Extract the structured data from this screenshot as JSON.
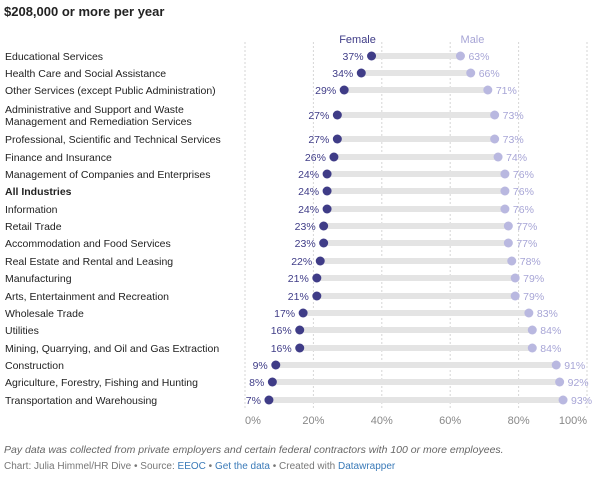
{
  "title": "$208,000 or more per year",
  "colors": {
    "female": "#3f3c87",
    "male": "#b9b8e0",
    "track": "#e4e4e4",
    "female_label": "#3f3c87",
    "male_label": "#a7a5d6"
  },
  "chart_data": {
    "type": "dot",
    "title": "$208,000 or more per year",
    "legend": [
      "Female",
      "Male"
    ],
    "xlim": [
      0,
      100
    ],
    "xticks": [
      "0%",
      "20%",
      "40%",
      "60%",
      "80%",
      "100%"
    ],
    "categories": [
      "Educational Services",
      "Health Care and Social Assistance",
      "Other Services (except Public Administration)",
      "Administrative and Support and Waste Management and Remediation Services",
      "Professional, Scientific and Technical Services",
      "Finance and Insurance",
      "Management of Companies and Enterprises",
      "All Industries",
      "Information",
      "Retail Trade",
      "Accommodation and Food Services",
      "Real Estate and Rental and Leasing",
      "Manufacturing",
      "Arts, Entertainment and Recreation",
      "Wholesale Trade",
      "Utilities",
      "Mining, Quarrying, and Oil and Gas Extraction",
      "Construction",
      "Agriculture, Forestry, Fishing and Hunting",
      "Transportation and Warehousing"
    ],
    "label_lines": [
      [
        "Educational Services"
      ],
      [
        "Health Care and Social Assistance"
      ],
      [
        "Other Services (except Public Administration)"
      ],
      [
        "Administrative and Support and Waste",
        "Management and Remediation Services"
      ],
      [
        "Professional, Scientific and Technical Services"
      ],
      [
        "Finance and Insurance"
      ],
      [
        "Management of Companies and Enterprises"
      ],
      [
        "All Industries"
      ],
      [
        "Information"
      ],
      [
        "Retail Trade"
      ],
      [
        "Accommodation and Food Services"
      ],
      [
        "Real Estate and Rental and Leasing"
      ],
      [
        "Manufacturing"
      ],
      [
        "Arts, Entertainment and Recreation"
      ],
      [
        "Wholesale Trade"
      ],
      [
        "Utilities"
      ],
      [
        "Mining, Quarrying, and Oil and Gas Extraction"
      ],
      [
        "Construction"
      ],
      [
        "Agriculture, Forestry, Fishing and Hunting"
      ],
      [
        "Transportation and Warehousing"
      ]
    ],
    "bold_category": "All Industries",
    "series": [
      {
        "name": "Female",
        "values": [
          37,
          34,
          29,
          27,
          27,
          26,
          24,
          24,
          24,
          23,
          23,
          22,
          21,
          21,
          17,
          16,
          16,
          9,
          8,
          7
        ]
      },
      {
        "name": "Male",
        "values": [
          63,
          66,
          71,
          73,
          73,
          74,
          76,
          76,
          76,
          77,
          77,
          78,
          79,
          79,
          83,
          84,
          84,
          91,
          92,
          93
        ]
      }
    ],
    "female_labels": [
      "37%",
      "34%",
      "29%",
      "27%",
      "27%",
      "26%",
      "24%",
      "24%",
      "24%",
      "23%",
      "23%",
      "22%",
      "21%",
      "21%",
      "17%",
      "16%",
      "16%",
      "9%",
      "8%",
      "7%"
    ],
    "male_labels": [
      "63%",
      "66%",
      "71%",
      "73%",
      "73%",
      "74%",
      "76%",
      "76%",
      "76%",
      "77%",
      "77%",
      "78%",
      "79%",
      "79%",
      "83%",
      "84%",
      "84%",
      "91%",
      "92%",
      "93%"
    ]
  },
  "footnote": "Pay data was collected from private employers and certain federal contractors with 100 or more employees.",
  "credits": {
    "prefix": "Chart: Julia Himmel/HR Dive • Source: ",
    "source": "EEOC",
    "sep1": " • ",
    "get_data": "Get the data",
    "sep2": " • Created with ",
    "tool": "Datawrapper"
  }
}
